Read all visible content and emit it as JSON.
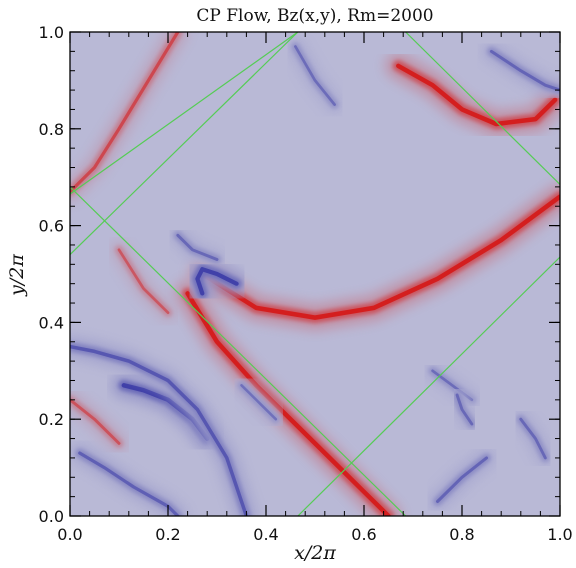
{
  "chart_data": {
    "type": "heatmap",
    "title": "CP Flow, Bz(x,y), Rm=2000",
    "xlabel": "x/2π",
    "ylabel": "y/2π",
    "xlim": [
      0.0,
      1.0
    ],
    "ylim": [
      0.0,
      1.0
    ],
    "x_tick_values": [
      0.0,
      0.2,
      0.4,
      0.6,
      0.8,
      1.0
    ],
    "y_tick_values": [
      0.0,
      0.2,
      0.4,
      0.6,
      0.8,
      1.0
    ],
    "x_tick_labels": [
      "0.0",
      "0.2",
      "0.4",
      "0.6",
      "0.8",
      "1.0"
    ],
    "y_tick_labels": [
      "0.0",
      "0.2",
      "0.4",
      "0.6",
      "0.8",
      "1.0"
    ],
    "colormap": {
      "negative": "#3f3fa8",
      "neutral": "#b9b9d6",
      "positive": "#d41e1e"
    },
    "line_color": "#55cc55",
    "lines": [
      [
        [
          0.0,
          0.665
        ],
        [
          0.465,
          1.0
        ]
      ],
      [
        [
          0.0,
          0.54
        ],
        [
          0.465,
          1.0
        ]
      ],
      [
        [
          0.685,
          1.0
        ],
        [
          1.0,
          0.685
        ]
      ],
      [
        [
          0.0,
          0.68
        ],
        [
          0.685,
          0.0
        ]
      ],
      [
        [
          0.465,
          0.0
        ],
        [
          1.0,
          0.535
        ]
      ]
    ],
    "features": [
      {
        "sign": 1,
        "strength": 1.0,
        "points": [
          [
            0.27,
            0.5
          ],
          [
            0.38,
            0.43
          ],
          [
            0.5,
            0.41
          ],
          [
            0.62,
            0.43
          ],
          [
            0.75,
            0.49
          ],
          [
            0.88,
            0.57
          ],
          [
            1.0,
            0.66
          ]
        ]
      },
      {
        "sign": 1,
        "strength": 1.0,
        "points": [
          [
            0.24,
            0.46
          ],
          [
            0.3,
            0.36
          ],
          [
            0.38,
            0.27
          ],
          [
            0.46,
            0.19
          ],
          [
            0.53,
            0.12
          ],
          [
            0.6,
            0.05
          ],
          [
            0.65,
            0.0
          ]
        ]
      },
      {
        "sign": 1,
        "strength": 1.0,
        "points": [
          [
            0.67,
            0.93
          ],
          [
            0.74,
            0.89
          ],
          [
            0.8,
            0.84
          ],
          [
            0.87,
            0.81
          ],
          [
            0.95,
            0.82
          ],
          [
            0.99,
            0.86
          ]
        ]
      },
      {
        "sign": 1,
        "strength": 0.55,
        "points": [
          [
            0.0,
            0.67
          ],
          [
            0.05,
            0.72
          ],
          [
            0.1,
            0.8
          ],
          [
            0.16,
            0.9
          ],
          [
            0.22,
            1.0
          ]
        ]
      },
      {
        "sign": 1,
        "strength": 0.45,
        "points": [
          [
            0.0,
            0.24
          ],
          [
            0.05,
            0.2
          ],
          [
            0.1,
            0.15
          ]
        ]
      },
      {
        "sign": 1,
        "strength": 0.4,
        "points": [
          [
            0.1,
            0.55
          ],
          [
            0.15,
            0.47
          ],
          [
            0.2,
            0.42
          ]
        ]
      },
      {
        "sign": -1,
        "strength": 1.0,
        "points": [
          [
            0.11,
            0.27
          ],
          [
            0.15,
            0.26
          ],
          [
            0.2,
            0.24
          ],
          [
            0.25,
            0.2
          ],
          [
            0.28,
            0.16
          ]
        ]
      },
      {
        "sign": -1,
        "strength": 0.9,
        "points": [
          [
            0.27,
            0.46
          ],
          [
            0.26,
            0.49
          ],
          [
            0.27,
            0.51
          ],
          [
            0.3,
            0.5
          ],
          [
            0.34,
            0.48
          ]
        ]
      },
      {
        "sign": -1,
        "strength": 0.65,
        "points": [
          [
            0.0,
            0.35
          ],
          [
            0.05,
            0.34
          ],
          [
            0.12,
            0.32
          ],
          [
            0.2,
            0.28
          ],
          [
            0.26,
            0.22
          ],
          [
            0.32,
            0.12
          ],
          [
            0.36,
            0.0
          ]
        ]
      },
      {
        "sign": -1,
        "strength": 0.55,
        "points": [
          [
            0.02,
            0.13
          ],
          [
            0.07,
            0.1
          ],
          [
            0.13,
            0.06
          ],
          [
            0.2,
            0.02
          ],
          [
            0.22,
            0.0
          ]
        ]
      },
      {
        "sign": -1,
        "strength": 0.5,
        "points": [
          [
            0.86,
            0.96
          ],
          [
            0.92,
            0.92
          ],
          [
            0.97,
            0.89
          ],
          [
            1.0,
            0.88
          ]
        ]
      },
      {
        "sign": -1,
        "strength": 0.45,
        "points": [
          [
            0.22,
            0.58
          ],
          [
            0.25,
            0.55
          ],
          [
            0.3,
            0.53
          ]
        ]
      },
      {
        "sign": -1,
        "strength": 0.4,
        "points": [
          [
            0.74,
            0.3
          ],
          [
            0.78,
            0.27
          ],
          [
            0.82,
            0.24
          ]
        ]
      },
      {
        "sign": -1,
        "strength": 0.45,
        "points": [
          [
            0.79,
            0.25
          ],
          [
            0.8,
            0.22
          ],
          [
            0.82,
            0.19
          ]
        ]
      },
      {
        "sign": -1,
        "strength": 0.5,
        "points": [
          [
            0.75,
            0.03
          ],
          [
            0.8,
            0.08
          ],
          [
            0.85,
            0.12
          ]
        ]
      },
      {
        "sign": -1,
        "strength": 0.45,
        "points": [
          [
            0.92,
            0.2
          ],
          [
            0.95,
            0.16
          ],
          [
            0.97,
            0.12
          ]
        ]
      },
      {
        "sign": -1,
        "strength": 0.4,
        "points": [
          [
            0.46,
            0.97
          ],
          [
            0.5,
            0.9
          ],
          [
            0.54,
            0.85
          ]
        ]
      },
      {
        "sign": -1,
        "strength": 0.35,
        "points": [
          [
            0.35,
            0.27
          ],
          [
            0.39,
            0.23
          ],
          [
            0.42,
            0.2
          ]
        ]
      }
    ]
  }
}
